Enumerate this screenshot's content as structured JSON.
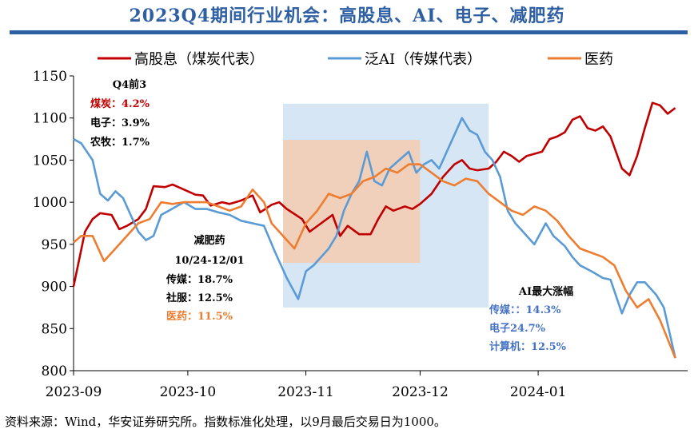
{
  "title": "2023Q4期间行业机会：高股息、AI、电子、减肥药",
  "footer": "资料来源：Wind，华安证券研究所。指数标准化处理，以9月最后交易日为1000。",
  "colors": {
    "title": "#2e5fa3",
    "red": "#c00000",
    "blue": "#5b9bd5",
    "orange": "#ed7d31",
    "shade_blue": "#cfe2f3",
    "shade_orange": "#f4cbb0"
  },
  "chart_data": {
    "type": "line",
    "title": "",
    "xlabel": "",
    "ylabel": "",
    "ylim": [
      800,
      1150
    ],
    "yticks": [
      "800",
      "850",
      "900",
      "950",
      "1000",
      "1050",
      "1100",
      "1150"
    ],
    "xticks": [
      "2023-09",
      "2023-10",
      "2023-11",
      "2023-12",
      "2024-01"
    ],
    "xtick_dates": [
      "2023-09-01",
      "2023-10-01",
      "2023-11-01",
      "2023-12-01",
      "2024-01-01"
    ],
    "xlim": [
      "2023-09-01",
      "2024-01-31"
    ],
    "legend": {
      "placement": "top",
      "entries": [
        "高股息（煤炭代表）",
        "泛AI（传媒代表）",
        "医药"
      ]
    },
    "series": [
      {
        "name": "高股息（煤炭代表）",
        "color": "#c00000",
        "points": [
          [
            "2023-09-01",
            900
          ],
          [
            "2023-09-04",
            965
          ],
          [
            "2023-09-06",
            980
          ],
          [
            "2023-09-08",
            987
          ],
          [
            "2023-09-11",
            985
          ],
          [
            "2023-09-13",
            968
          ],
          [
            "2023-09-15",
            972
          ],
          [
            "2023-09-18",
            980
          ],
          [
            "2023-09-20",
            992
          ],
          [
            "2023-09-22",
            1019
          ],
          [
            "2023-09-25",
            1018
          ],
          [
            "2023-09-27",
            1021
          ],
          [
            "2023-09-29",
            1017
          ],
          [
            "2023-10-03",
            1009
          ],
          [
            "2023-10-05",
            1008
          ],
          [
            "2023-10-07",
            996
          ],
          [
            "2023-10-10",
            1000
          ],
          [
            "2023-10-12",
            998
          ],
          [
            "2023-10-15",
            1002
          ],
          [
            "2023-10-18",
            1008
          ],
          [
            "2023-10-20",
            988
          ],
          [
            "2023-10-23",
            997
          ],
          [
            "2023-10-25",
            1000
          ],
          [
            "2023-10-27",
            992
          ],
          [
            "2023-10-31",
            980
          ],
          [
            "2023-11-02",
            965
          ],
          [
            "2023-11-05",
            975
          ],
          [
            "2023-11-08",
            985
          ],
          [
            "2023-11-10",
            960
          ],
          [
            "2023-11-12",
            972
          ],
          [
            "2023-11-15",
            962
          ],
          [
            "2023-11-18",
            962
          ],
          [
            "2023-11-20",
            980
          ],
          [
            "2023-11-22",
            995
          ],
          [
            "2023-11-24",
            990
          ],
          [
            "2023-11-27",
            995
          ],
          [
            "2023-11-29",
            992
          ],
          [
            "2023-12-01",
            998
          ],
          [
            "2023-12-04",
            1010
          ],
          [
            "2023-12-07",
            1030
          ],
          [
            "2023-12-10",
            1045
          ],
          [
            "2023-12-12",
            1050
          ],
          [
            "2023-12-14",
            1040
          ],
          [
            "2023-12-16",
            1038
          ],
          [
            "2023-12-19",
            1040
          ],
          [
            "2023-12-21",
            1048
          ],
          [
            "2023-12-23",
            1060
          ],
          [
            "2023-12-25",
            1055
          ],
          [
            "2023-12-27",
            1048
          ],
          [
            "2023-12-29",
            1055
          ],
          [
            "2024-01-02",
            1060
          ],
          [
            "2024-01-04",
            1075
          ],
          [
            "2024-01-06",
            1078
          ],
          [
            "2024-01-08",
            1083
          ],
          [
            "2024-01-10",
            1098
          ],
          [
            "2024-01-12",
            1102
          ],
          [
            "2024-01-14",
            1088
          ],
          [
            "2024-01-16",
            1085
          ],
          [
            "2024-01-18",
            1090
          ],
          [
            "2024-01-20",
            1078
          ],
          [
            "2024-01-23",
            1040
          ],
          [
            "2024-01-25",
            1032
          ],
          [
            "2024-01-27",
            1055
          ],
          [
            "2024-01-29",
            1088
          ],
          [
            "2024-01-31",
            1118
          ],
          [
            "2024-02-02",
            1115
          ],
          [
            "2024-02-04",
            1105
          ],
          [
            "2024-02-06",
            1112
          ]
        ]
      },
      {
        "name": "泛AI（传媒代表）",
        "color": "#5b9bd5",
        "points": [
          [
            "2023-09-01",
            1075
          ],
          [
            "2023-09-03",
            1070
          ],
          [
            "2023-09-06",
            1050
          ],
          [
            "2023-09-08",
            1010
          ],
          [
            "2023-09-10",
            1002
          ],
          [
            "2023-09-12",
            1013
          ],
          [
            "2023-09-14",
            1005
          ],
          [
            "2023-09-16",
            985
          ],
          [
            "2023-09-18",
            965
          ],
          [
            "2023-09-20",
            955
          ],
          [
            "2023-09-22",
            960
          ],
          [
            "2023-09-24",
            985
          ],
          [
            "2023-09-26",
            990
          ],
          [
            "2023-09-28",
            995
          ],
          [
            "2023-09-30",
            1000
          ],
          [
            "2023-10-03",
            992
          ],
          [
            "2023-10-06",
            992
          ],
          [
            "2023-10-09",
            988
          ],
          [
            "2023-10-12",
            985
          ],
          [
            "2023-10-15",
            978
          ],
          [
            "2023-10-18",
            975
          ],
          [
            "2023-10-21",
            972
          ],
          [
            "2023-10-24",
            940
          ],
          [
            "2023-10-27",
            910
          ],
          [
            "2023-10-30",
            885
          ],
          [
            "2023-11-01",
            918
          ],
          [
            "2023-11-03",
            925
          ],
          [
            "2023-11-05",
            935
          ],
          [
            "2023-11-07",
            945
          ],
          [
            "2023-11-09",
            960
          ],
          [
            "2023-11-11",
            990
          ],
          [
            "2023-11-13",
            1010
          ],
          [
            "2023-11-15",
            1025
          ],
          [
            "2023-11-17",
            1060
          ],
          [
            "2023-11-19",
            1025
          ],
          [
            "2023-11-21",
            1020
          ],
          [
            "2023-11-23",
            1040
          ],
          [
            "2023-11-25",
            1048
          ],
          [
            "2023-11-28",
            1060
          ],
          [
            "2023-11-30",
            1035
          ],
          [
            "2023-12-02",
            1045
          ],
          [
            "2023-12-04",
            1050
          ],
          [
            "2023-12-06",
            1040
          ],
          [
            "2023-12-08",
            1060
          ],
          [
            "2023-12-10",
            1080
          ],
          [
            "2023-12-12",
            1100
          ],
          [
            "2023-12-14",
            1085
          ],
          [
            "2023-12-16",
            1080
          ],
          [
            "2023-12-18",
            1060
          ],
          [
            "2023-12-20",
            1050
          ],
          [
            "2023-12-22",
            1030
          ],
          [
            "2023-12-24",
            990
          ],
          [
            "2023-12-26",
            975
          ],
          [
            "2023-12-28",
            965
          ],
          [
            "2023-12-31",
            950
          ],
          [
            "2024-01-03",
            975
          ],
          [
            "2024-01-05",
            960
          ],
          [
            "2024-01-08",
            948
          ],
          [
            "2024-01-10",
            935
          ],
          [
            "2024-01-12",
            925
          ],
          [
            "2024-01-15",
            918
          ],
          [
            "2024-01-18",
            910
          ],
          [
            "2024-01-20",
            908
          ],
          [
            "2024-01-23",
            868
          ],
          [
            "2024-01-25",
            890
          ],
          [
            "2024-01-27",
            905
          ],
          [
            "2024-01-29",
            905
          ],
          [
            "2024-02-01",
            890
          ],
          [
            "2024-02-03",
            875
          ],
          [
            "2024-02-06",
            815
          ]
        ]
      },
      {
        "name": "医药",
        "color": "#ed7d31",
        "points": [
          [
            "2023-09-01",
            952
          ],
          [
            "2023-09-03",
            960
          ],
          [
            "2023-09-06",
            960
          ],
          [
            "2023-09-09",
            930
          ],
          [
            "2023-09-12",
            945
          ],
          [
            "2023-09-15",
            960
          ],
          [
            "2023-09-18",
            975
          ],
          [
            "2023-09-21",
            980
          ],
          [
            "2023-09-24",
            1000
          ],
          [
            "2023-09-27",
            998
          ],
          [
            "2023-09-30",
            1000
          ],
          [
            "2023-10-03",
            1000
          ],
          [
            "2023-10-06",
            1000
          ],
          [
            "2023-10-09",
            995
          ],
          [
            "2023-10-12",
            990
          ],
          [
            "2023-10-15",
            995
          ],
          [
            "2023-10-18",
            1015
          ],
          [
            "2023-10-21",
            1000
          ],
          [
            "2023-10-23",
            975
          ],
          [
            "2023-10-26",
            960
          ],
          [
            "2023-10-29",
            945
          ],
          [
            "2023-11-01",
            975
          ],
          [
            "2023-11-04",
            990
          ],
          [
            "2023-11-07",
            1010
          ],
          [
            "2023-11-10",
            1005
          ],
          [
            "2023-11-13",
            1010
          ],
          [
            "2023-11-16",
            1025
          ],
          [
            "2023-11-19",
            1030
          ],
          [
            "2023-11-22",
            1040
          ],
          [
            "2023-11-25",
            1035
          ],
          [
            "2023-11-28",
            1045
          ],
          [
            "2023-12-01",
            1045
          ],
          [
            "2023-12-04",
            1035
          ],
          [
            "2023-12-07",
            1025
          ],
          [
            "2023-12-10",
            1020
          ],
          [
            "2023-12-13",
            1028
          ],
          [
            "2023-12-16",
            1025
          ],
          [
            "2023-12-19",
            1010
          ],
          [
            "2023-12-22",
            1000
          ],
          [
            "2023-12-25",
            990
          ],
          [
            "2023-12-28",
            985
          ],
          [
            "2023-12-31",
            995
          ],
          [
            "2024-01-03",
            990
          ],
          [
            "2024-01-06",
            978
          ],
          [
            "2024-01-09",
            960
          ],
          [
            "2024-01-12",
            945
          ],
          [
            "2024-01-15",
            940
          ],
          [
            "2024-01-18",
            935
          ],
          [
            "2024-01-21",
            925
          ],
          [
            "2024-01-24",
            895
          ],
          [
            "2024-01-27",
            875
          ],
          [
            "2024-01-30",
            885
          ],
          [
            "2024-02-02",
            860
          ],
          [
            "2024-02-06",
            815
          ]
        ]
      }
    ],
    "highlights": [
      {
        "name": "AI",
        "x": [
          "2023-10-26",
          "2023-12-19"
        ],
        "y": [
          875,
          1117
        ],
        "color": "#cfe2f3"
      },
      {
        "name": "减肥药",
        "x": [
          "2023-10-26",
          "2023-12-01"
        ],
        "y": [
          928,
          1074
        ],
        "color": "#f4cbb0"
      }
    ],
    "annotations": {
      "q4_top3": {
        "title": "Q4前3",
        "lines": [
          {
            "label": "煤炭",
            "value": "4.2%",
            "color": "#c00000"
          },
          {
            "label": "电子",
            "value": "3.9%",
            "color": "#000000"
          },
          {
            "label": "农牧",
            "value": "1.7%",
            "color": "#000000"
          }
        ]
      },
      "weight_loss": {
        "title": "减肥药",
        "period": "10/24-12/01",
        "lines": [
          {
            "label": "传媒",
            "value": "18.7%",
            "color": "#000000"
          },
          {
            "label": "社服",
            "value": "12.5%",
            "color": "#000000"
          },
          {
            "label": "医药",
            "value": "11.5%",
            "color": "#ed7d31"
          }
        ]
      },
      "ai_max": {
        "title": "AI最大涨幅",
        "lines": [
          {
            "text": "传媒：：14.3%",
            "color": "#4472c4"
          },
          {
            "text": "电子24.7%",
            "color": "#4472c4"
          },
          {
            "text": "计算机：12.5%",
            "color": "#4472c4"
          }
        ]
      }
    }
  }
}
